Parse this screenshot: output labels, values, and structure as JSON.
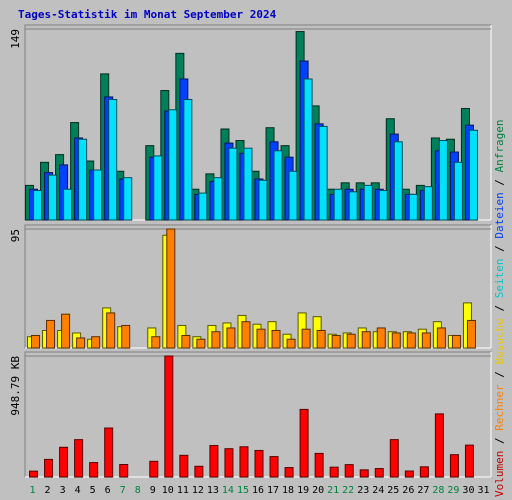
{
  "chart_data": {
    "type": "bar",
    "title": "Tages-Statistik im Monat September 2024",
    "categories": [
      "1",
      "2",
      "3",
      "4",
      "5",
      "6",
      "7",
      "8",
      "9",
      "10",
      "11",
      "12",
      "13",
      "14",
      "15",
      "16",
      "17",
      "18",
      "19",
      "20",
      "21",
      "22",
      "23",
      "24",
      "25",
      "26",
      "27",
      "28",
      "29",
      "30",
      "31"
    ],
    "weekend_days": [
      "1",
      "7",
      "8",
      "14",
      "15",
      "21",
      "22",
      "28",
      "29"
    ],
    "panels": [
      {
        "id": "top",
        "ytick": "149",
        "ymax": 149,
        "series": [
          {
            "name": "Anfragen",
            "color": "#00805a",
            "values": [
              27,
              45,
              51,
              76,
              46,
              114,
              38,
              0,
              58,
              101,
              130,
              24,
              36,
              71,
              62,
              38,
              72,
              58,
              147,
              89,
              24,
              29,
              29,
              29,
              79,
              24,
              27,
              64,
              63,
              87,
              0
            ]
          },
          {
            "name": "Dateien",
            "color": "#0040ff",
            "values": [
              24,
              37,
              43,
              64,
              39,
              96,
              32,
              0,
              49,
              85,
              110,
              20,
              30,
              60,
              52,
              32,
              61,
              49,
              124,
              75,
              20,
              24,
              24,
              24,
              67,
              20,
              23,
              54,
              53,
              74,
              0
            ]
          },
          {
            "name": "Seiten",
            "color": "#00e0ff",
            "values": [
              23,
              35,
              24,
              63,
              39,
              94,
              33,
              0,
              50,
              86,
              94,
              21,
              33,
              56,
              56,
              31,
              54,
              38,
              110,
              73,
              24,
              22,
              27,
              23,
              61,
              20,
              26,
              62,
              45,
              70,
              0
            ]
          }
        ]
      },
      {
        "id": "middle",
        "ytick": "95",
        "ymax": 95,
        "series": [
          {
            "name": "Besuche",
            "color": "#ffff00",
            "values": [
              9,
              14,
              14,
              12,
              7,
              32,
              17,
              0,
              16,
              90,
              18,
              9,
              18,
              20,
              26,
              19,
              21,
              11,
              28,
              25,
              11,
              12,
              16,
              13,
              13,
              13,
              15,
              21,
              10,
              36,
              0
            ]
          },
          {
            "name": "Rechner",
            "color": "#ff8000",
            "values": [
              10,
              22,
              27,
              8,
              9,
              28,
              18,
              0,
              9,
              95,
              10,
              7,
              13,
              16,
              21,
              15,
              14,
              7,
              15,
              14,
              10,
              11,
              13,
              16,
              12,
              12,
              12,
              16,
              10,
              22,
              0
            ]
          }
        ]
      },
      {
        "id": "bottom",
        "ytick": "948.79 KB",
        "ymax": 948.79,
        "series": [
          {
            "name": "Volumen",
            "color": "#ff0000",
            "values": [
              46,
              138,
              233,
              293,
              113,
              384,
              98,
              0,
              123,
              948.79,
              170,
              84,
              247,
              222,
              237,
              208,
              160,
              74,
              530,
              185,
              77,
              97,
              56,
              66,
              293,
              47,
              80,
              495,
              175,
              250,
              0
            ]
          }
        ]
      }
    ],
    "legend": [
      {
        "label": "Volumen",
        "color": "#c80000"
      },
      {
        "label": "Rechner",
        "color": "#ff8000"
      },
      {
        "label": "Besuche",
        "color": "#e8c800"
      },
      {
        "label": "Seiten",
        "color": "#00c8c8"
      },
      {
        "label": "Dateien",
        "color": "#0040ff"
      },
      {
        "label": "Anfragen",
        "color": "#008040"
      }
    ],
    "legend_separator": " / ",
    "colors": {
      "background": "#c0c0c0",
      "weekday_tick": "#000000",
      "weekend_tick": "#008040",
      "gridline": "#808080"
    }
  }
}
